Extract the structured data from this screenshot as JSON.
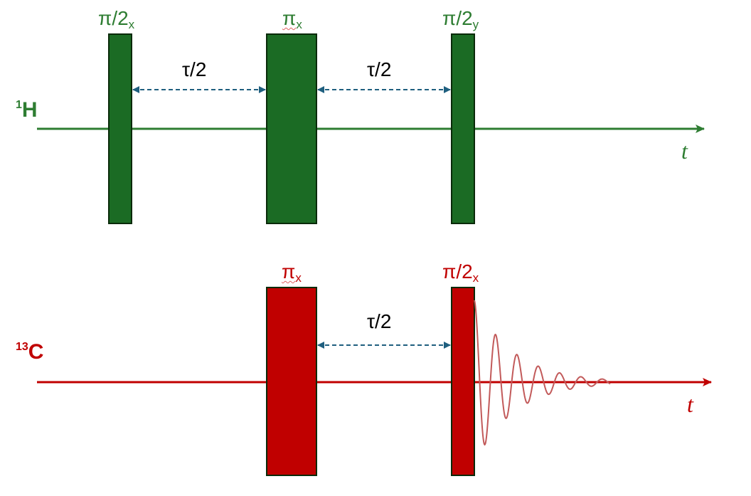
{
  "colors": {
    "proton": "#2e7d32",
    "proton_pulse_fill": "#1b6b24",
    "carbon": "#c00000",
    "carbon_pulse_fill": "#c00000",
    "pulse_border": "#0a2a0a",
    "delay_arrow": "#1f5f7f",
    "fid": "#c25a5a"
  },
  "channels": {
    "proton": {
      "isotope_mass": "1",
      "element": "H",
      "time_axis_label": "t",
      "pulses": [
        {
          "angle": "π/2",
          "phase": "x"
        },
        {
          "angle": "π",
          "phase": "x"
        },
        {
          "angle": "π/2",
          "phase": "y"
        }
      ],
      "delays": [
        "τ/2",
        "τ/2"
      ]
    },
    "carbon": {
      "isotope_mass": "13",
      "element": "C",
      "time_axis_label": "t",
      "pulses": [
        {
          "angle": "π",
          "phase": "x"
        },
        {
          "angle": "π/2",
          "phase": "x"
        }
      ],
      "delays": [
        "τ/2"
      ],
      "acquisition": "fid-icon"
    }
  }
}
